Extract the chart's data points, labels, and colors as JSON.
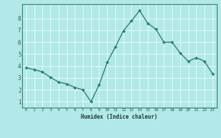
{
  "x": [
    0,
    1,
    2,
    3,
    4,
    5,
    6,
    7,
    8,
    9,
    10,
    11,
    12,
    13,
    14,
    15,
    16,
    17,
    18,
    19,
    20,
    21,
    22,
    23
  ],
  "y": [
    3.85,
    3.7,
    3.5,
    3.05,
    2.65,
    2.5,
    2.2,
    2.0,
    1.0,
    2.4,
    4.3,
    5.6,
    6.95,
    7.8,
    8.65,
    7.6,
    7.1,
    6.0,
    6.0,
    5.1,
    4.4,
    4.7,
    4.4,
    3.35
  ],
  "xlabel": "Humidex (Indice chaleur)",
  "xlim": [
    -0.5,
    23.5
  ],
  "ylim": [
    0.5,
    9.2
  ],
  "yticks": [
    1,
    2,
    3,
    4,
    5,
    6,
    7,
    8
  ],
  "xticks": [
    0,
    1,
    2,
    3,
    4,
    5,
    6,
    7,
    8,
    9,
    10,
    11,
    12,
    13,
    14,
    15,
    16,
    17,
    18,
    19,
    20,
    21,
    22,
    23
  ],
  "line_color": "#2e7d6e",
  "bg_color": "#b2e8e8",
  "grid_color": "#e8ffff",
  "tick_label_color": "#2e5e5e",
  "xlabel_color": "#1a3a3a",
  "figsize": [
    3.2,
    2.0
  ],
  "dpi": 100
}
